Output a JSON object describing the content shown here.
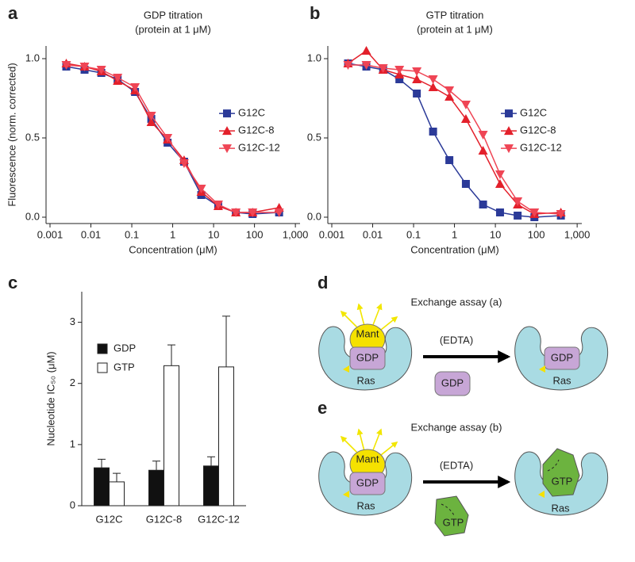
{
  "chart_data": [
    {
      "type": "scatter",
      "panel": "a",
      "title": "GDP titration",
      "subtitle": "(protein at 1 μM)",
      "x_label": "Concentration (μM)",
      "y_label": "Fluorescence (norm. corrected)",
      "x": [
        0.0025,
        0.007,
        0.018,
        0.045,
        0.12,
        0.3,
        0.75,
        1.9,
        5,
        13,
        35,
        90,
        400
      ],
      "xlog": true,
      "xlim": [
        0.0008,
        1300
      ],
      "xticks": [
        0.001,
        0.01,
        0.1,
        1,
        10,
        100,
        {
          "value": 1000,
          "label": "1,000"
        }
      ],
      "ylim": [
        -0.04,
        1.08
      ],
      "yticks": [
        {
          "value": 0,
          "label": "0.0"
        },
        {
          "value": 0.5,
          "label": "0.5"
        },
        {
          "value": 1,
          "label": "1.0"
        }
      ],
      "legend": "center right",
      "series": [
        {
          "name": "G12C",
          "color": "#2b3a98",
          "marker": "square",
          "values": [
            0.95,
            0.93,
            0.91,
            0.87,
            0.79,
            0.62,
            0.47,
            0.35,
            0.14,
            0.07,
            0.03,
            0.02,
            0.03
          ]
        },
        {
          "name": "G12C-8",
          "color": "#e3202b",
          "marker": "triangle-up",
          "values": [
            0.97,
            0.95,
            0.92,
            0.86,
            0.8,
            0.6,
            0.49,
            0.36,
            0.16,
            0.07,
            0.03,
            0.03,
            0.06
          ]
        },
        {
          "name": "G12C-12",
          "color": "#ef4555",
          "marker": "triangle-down",
          "values": [
            0.96,
            0.95,
            0.93,
            0.88,
            0.82,
            0.64,
            0.5,
            0.34,
            0.18,
            0.08,
            0.03,
            0.03,
            0.03
          ]
        }
      ]
    },
    {
      "type": "scatter",
      "panel": "b",
      "title": "GTP titration",
      "subtitle": "(protein at 1 μM)",
      "x_label": "Concentration (μM)",
      "x": [
        0.0025,
        0.007,
        0.018,
        0.045,
        0.12,
        0.3,
        0.75,
        1.9,
        5,
        13,
        35,
        90,
        400
      ],
      "xlog": true,
      "xlim": [
        0.0008,
        1300
      ],
      "xticks": [
        0.001,
        0.01,
        0.1,
        1,
        10,
        100,
        {
          "value": 1000,
          "label": "1,000"
        }
      ],
      "ylim": [
        -0.04,
        1.08
      ],
      "yticks": [
        {
          "value": 0,
          "label": "0.0"
        },
        {
          "value": 0.5,
          "label": "0.5"
        },
        {
          "value": 1,
          "label": "1.0"
        }
      ],
      "legend": "center right",
      "series": [
        {
          "name": "G12C",
          "color": "#2b3a98",
          "marker": "square",
          "values": [
            0.97,
            0.95,
            0.93,
            0.87,
            0.78,
            0.54,
            0.36,
            0.21,
            0.08,
            0.03,
            0.01,
            0,
            0.01
          ]
        },
        {
          "name": "G12C-8",
          "color": "#e3202b",
          "marker": "triangle-up",
          "values": [
            0.97,
            1.05,
            0.93,
            0.9,
            0.87,
            0.82,
            0.76,
            0.62,
            0.42,
            0.21,
            0.08,
            0.02,
            0.03
          ]
        },
        {
          "name": "G12C-12",
          "color": "#ef4555",
          "marker": "triangle-down",
          "values": [
            0.96,
            0.96,
            0.94,
            0.93,
            0.92,
            0.87,
            0.8,
            0.71,
            0.52,
            0.27,
            0.1,
            0.03,
            0.02
          ]
        }
      ]
    },
    {
      "type": "bar",
      "panel": "c",
      "y_label": "Nucleotide IC₅₀ (μM)",
      "categories": [
        "G12C",
        "G12C-8",
        "G12C-12"
      ],
      "ylim": [
        0,
        3.5
      ],
      "yticks": [
        0,
        1,
        2,
        3
      ],
      "legend": "upper left",
      "series": [
        {
          "name": "GDP",
          "color": "#111111",
          "values": [
            0.62,
            0.58,
            0.65
          ],
          "errors": [
            0.14,
            0.15,
            0.15
          ]
        },
        {
          "name": "GTP",
          "color": "#ffffff",
          "values": [
            0.39,
            2.29,
            2.27
          ],
          "errors": [
            0.14,
            0.34,
            0.83
          ]
        }
      ]
    }
  ],
  "diagrams": [
    {
      "panel": "d",
      "title": "Exchange assay (a)",
      "label": "Mant",
      "bound": "GDP",
      "protein": "Ras",
      "reagent": "(EDTA)",
      "released": "GDP",
      "product_nucleotide": "GDP",
      "product_protein": "Ras"
    },
    {
      "panel": "e",
      "title": "Exchange assay (b)",
      "label": "Mant",
      "bound": "GDP",
      "protein": "Ras",
      "reagent": "(EDTA)",
      "released": "GTP",
      "product_nucleotide": "GTP",
      "product_protein": "Ras"
    }
  ]
}
